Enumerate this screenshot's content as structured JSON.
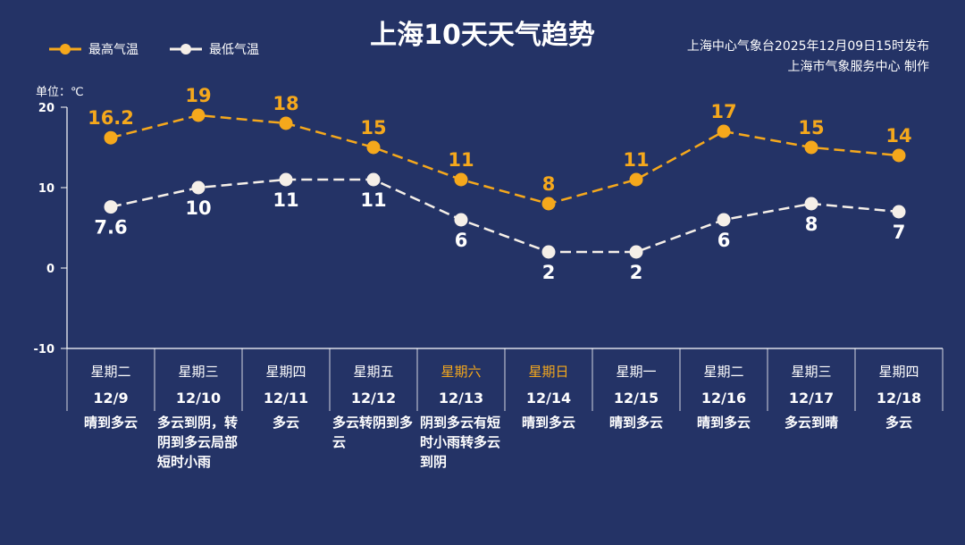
{
  "title": "上海10天天气趋势",
  "source_line1": "上海中心气象台2025年12月09日15时发布",
  "source_line2": "上海市气象服务中心 制作",
  "colors": {
    "background": "#243366",
    "high": "#f5a81c",
    "low": "#f5efe8",
    "weekend": "#f5a81c"
  },
  "chart_data": {
    "type": "line",
    "title": "上海10天天气趋势",
    "ylabel": "单位：℃",
    "ylim": [
      -10,
      20
    ],
    "yticks": [
      "20",
      "10",
      "0",
      "-10"
    ],
    "ytick_values": [
      20,
      10,
      0,
      -10
    ],
    "grid": false,
    "legend_position": "top-left",
    "categories": [
      "12/9",
      "12/10",
      "12/11",
      "12/12",
      "12/13",
      "12/14",
      "12/15",
      "12/16",
      "12/17",
      "12/18"
    ],
    "weekdays": [
      "星期二",
      "星期三",
      "星期四",
      "星期五",
      "星期六",
      "星期日",
      "星期一",
      "星期二",
      "星期三",
      "星期四"
    ],
    "weekend": [
      false,
      false,
      false,
      false,
      true,
      true,
      false,
      false,
      false,
      false
    ],
    "weather": [
      "晴到多云",
      "多云到阴，转阴到多云局部短时小雨",
      "多云",
      "多云转阴到多云",
      "阴到多云有短时小雨转多云到阴",
      "晴到多云",
      "晴到多云",
      "晴到多云",
      "多云到晴",
      "多云"
    ],
    "series": [
      {
        "name": "最高气温",
        "values": [
          16.2,
          19,
          18,
          15,
          11,
          8,
          11,
          17,
          15,
          14
        ],
        "labels": [
          "16.2",
          "19",
          "18",
          "15",
          "11",
          "8",
          "11",
          "17",
          "15",
          "14"
        ]
      },
      {
        "name": "最低气温",
        "values": [
          7.6,
          10,
          11,
          11,
          6,
          2,
          2,
          6,
          8,
          7
        ],
        "labels": [
          "7.6",
          "10",
          "11",
          "11",
          "6",
          "2",
          "2",
          "6",
          "8",
          "7"
        ]
      }
    ]
  }
}
